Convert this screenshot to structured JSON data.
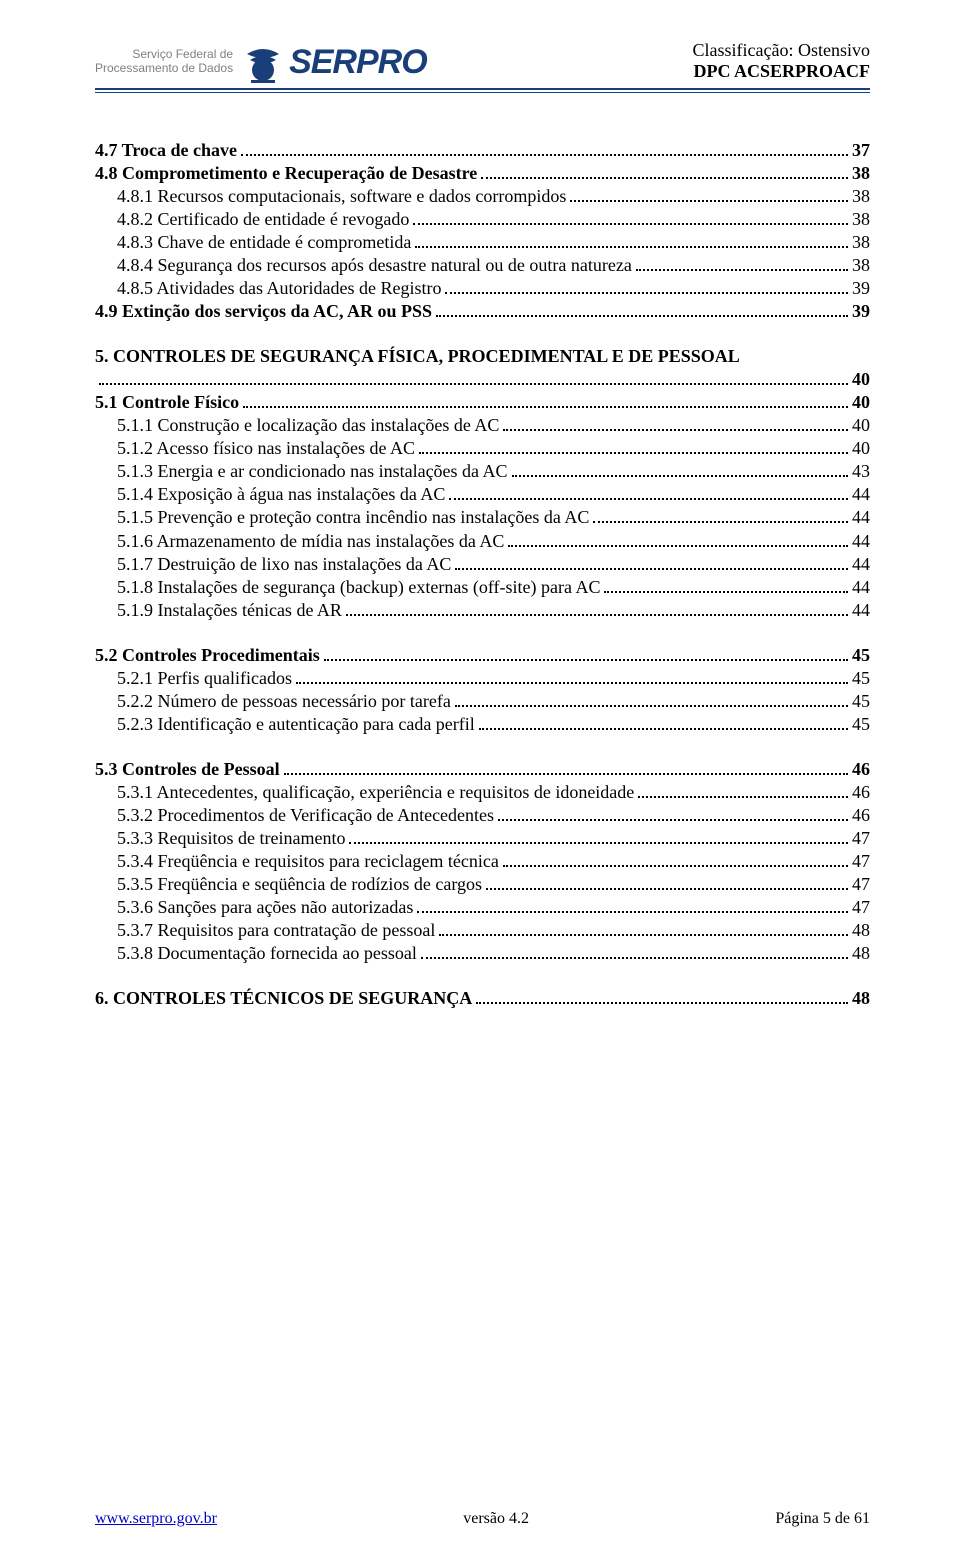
{
  "header": {
    "service_line1": "Serviço Federal de",
    "service_line2": "Processamento de Dados",
    "brand": "SERPRO",
    "classification": "Classificação: Ostensivo",
    "doc_code": "DPC ACSERPROACF"
  },
  "colors": {
    "brand_blue": "#1a3e7a",
    "text_gray": "#808080",
    "link_blue": "#0000cc"
  },
  "toc": [
    {
      "group": [
        {
          "label": "4.7 Troca de chave",
          "page": "37",
          "bold": true
        },
        {
          "label": "4.8 Comprometimento e Recuperação de Desastre",
          "page": "38",
          "bold": true
        },
        {
          "label": "4.8.1 Recursos computacionais, software e dados  corrompidos",
          "page": "38",
          "indent": 1
        },
        {
          "label": "4.8.2 Certificado de entidade é revogado",
          "page": "38",
          "indent": 1
        },
        {
          "label": "4.8.3 Chave de entidade é comprometida",
          "page": "38",
          "indent": 1
        },
        {
          "label": "4.8.4 Segurança dos recursos após desastre natural ou de outra natureza",
          "page": "38",
          "indent": 1
        },
        {
          "label": "4.8.5 Atividades das Autoridades de Registro",
          "page": "39",
          "indent": 1
        },
        {
          "label": "4.9 Extinção dos serviços da AC, AR ou PSS",
          "page": "39",
          "bold": true
        }
      ]
    },
    {
      "group": [
        {
          "label": "5. CONTROLES DE SEGURANÇA FÍSICA, PROCEDIMENTAL E DE PESSOAL",
          "page": "40",
          "bold": true,
          "wrap": true
        },
        {
          "label": "5.1 Controle Físico",
          "page": "40",
          "bold": true
        },
        {
          "label": "5.1.1 Construção e localização das instalações de AC",
          "page": "40",
          "indent": 1
        },
        {
          "label": "5.1.2 Acesso físico nas instalações de AC",
          "page": "40",
          "indent": 1
        },
        {
          "label": "5.1.3 Energia e ar condicionado nas instalações da AC",
          "page": "43",
          "indent": 1
        },
        {
          "label": "5.1.4 Exposição à  água nas instalações da AC",
          "page": "44",
          "indent": 1
        },
        {
          "label": "5.1.5 Prevenção e proteção contra incêndio nas instalações da AC",
          "page": "44",
          "indent": 1
        },
        {
          "label": "5.1.6 Armazenamento de mídia nas instalações da AC",
          "page": "44",
          "indent": 1
        },
        {
          "label": "5.1.7 Destruição de lixo nas instalações da AC",
          "page": "44",
          "indent": 1
        },
        {
          "label": "5.1.8 Instalações de segurança (backup) externas (off-site) para AC",
          "page": "44",
          "indent": 1
        },
        {
          "label": "5.1.9 Instalações ténicas de AR",
          "page": "44",
          "indent": 1
        }
      ]
    },
    {
      "group": [
        {
          "label": "5.2 Controles Procedimentais",
          "page": "45",
          "bold": true
        },
        {
          "label": "5.2.1 Perfis qualificados",
          "page": "45",
          "indent": 1
        },
        {
          "label": "5.2.2 Número de pessoas necessário por tarefa",
          "page": "45",
          "indent": 1
        },
        {
          "label": "5.2.3 Identificação e autenticação para cada perfil",
          "page": "45",
          "indent": 1
        }
      ]
    },
    {
      "group": [
        {
          "label": "5.3 Controles de Pessoal",
          "page": "46",
          "bold": true
        },
        {
          "label": "5.3.1 Antecedentes, qualificação, experiência e requisitos de idoneidade",
          "page": "46",
          "indent": 1
        },
        {
          "label": "5.3.2 Procedimentos de Verificação de Antecedentes",
          "page": "46",
          "indent": 1
        },
        {
          "label": "5.3.3 Requisitos de treinamento",
          "page": "47",
          "indent": 1
        },
        {
          "label": "5.3.4 Freqüência e requisitos para reciclagem técnica",
          "page": "47",
          "indent": 1
        },
        {
          "label": "5.3.5 Freqüência e seqüência de rodízios de cargos",
          "page": "47",
          "indent": 1
        },
        {
          "label": "5.3.6 Sanções para ações não autorizadas",
          "page": "47",
          "indent": 1
        },
        {
          "label": "5.3.7 Requisitos para contratação de pessoal",
          "page": "48",
          "indent": 1
        },
        {
          "label": "5.3.8 Documentação fornecida ao pessoal",
          "page": "48",
          "indent": 1
        }
      ]
    },
    {
      "group": [
        {
          "label": "6. CONTROLES TÉCNICOS DE SEGURANÇA",
          "page": "48",
          "bold": true
        }
      ]
    }
  ],
  "footer": {
    "url": "www.serpro.gov.br",
    "version": "versão 4.2",
    "page_info": "Página 5 de 61"
  }
}
